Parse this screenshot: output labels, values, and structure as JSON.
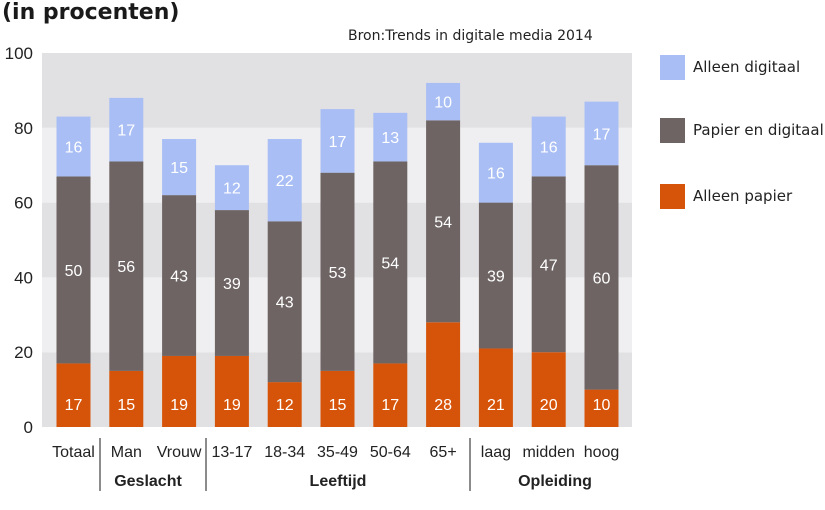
{
  "title": "(in procenten)",
  "source": "Bron:Trends in digitale media 2014",
  "colors": {
    "alleen_digitaal": "#a8bef4",
    "papier_en_digitaal": "#6e6464",
    "alleen_papier": "#d65409",
    "band_dark": "#e1e1e3",
    "band_light": "#efeff1"
  },
  "legend": [
    {
      "label": "Alleen digitaal",
      "color": "#a8bef4"
    },
    {
      "label": "Papier en digitaal",
      "color": "#6e6464"
    },
    {
      "label": "Alleen papier",
      "color": "#d65409"
    }
  ],
  "chart_data": {
    "type": "bar",
    "stacked": true,
    "title": "(in procenten)",
    "source": "Bron:Trends in digitale media 2014",
    "categories": [
      "Totaal",
      "Man",
      "Vrouw",
      "13-17",
      "18-34",
      "35-49",
      "50-64",
      "65+",
      "laag",
      "midden",
      "hoog"
    ],
    "groups": [
      {
        "label": "Geslacht",
        "categories": [
          "Man",
          "Vrouw"
        ]
      },
      {
        "label": "Leeftijd",
        "categories": [
          "13-17",
          "18-34",
          "35-49",
          "50-64",
          "65+"
        ]
      },
      {
        "label": "Opleiding",
        "categories": [
          "laag",
          "midden",
          "hoog"
        ]
      }
    ],
    "series": [
      {
        "name": "Alleen papier",
        "color": "#d65409",
        "values": [
          17,
          15,
          19,
          19,
          12,
          15,
          17,
          28,
          21,
          20,
          10
        ]
      },
      {
        "name": "Papier en digitaal",
        "color": "#6e6464",
        "values": [
          50,
          56,
          43,
          39,
          43,
          53,
          54,
          54,
          39,
          47,
          60
        ]
      },
      {
        "name": "Alleen digitaal",
        "color": "#a8bef4",
        "values": [
          16,
          17,
          15,
          12,
          22,
          17,
          13,
          10,
          16,
          16,
          17
        ]
      }
    ],
    "ylim": [
      0,
      100
    ],
    "yticks": [
      0,
      20,
      40,
      60,
      80,
      100
    ],
    "legend_position": "right",
    "grid": "horizontal bands"
  }
}
